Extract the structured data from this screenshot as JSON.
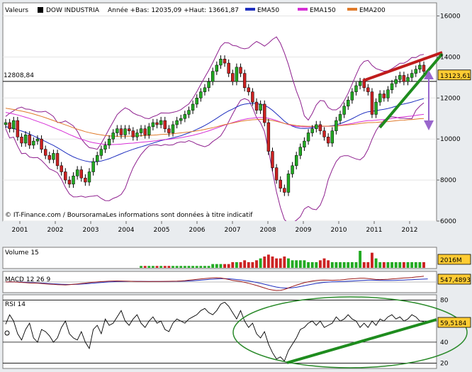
{
  "header": {
    "label_valeurs": "Valeurs",
    "symbol": "DOW INDUSTRIA",
    "range_text": "Année +Bas: 12035,09 +Haut: 13661,87",
    "legend": [
      {
        "name": "EMA50",
        "color": "#1f2fbf"
      },
      {
        "name": "EMA150",
        "color": "#d62fd6"
      },
      {
        "name": "EMA200",
        "color": "#e07a2a"
      }
    ]
  },
  "source_text": "© IT-Finance.com / BoursoramaLes informations sont données à titre indicatif",
  "chart_data": [
    {
      "type": "candlestick",
      "x_labels": [
        "2001",
        "2002",
        "2003",
        "2004",
        "2005",
        "2006",
        "2007",
        "2008",
        "2009",
        "2010",
        "2011",
        "2012"
      ],
      "ylim": [
        6000,
        16500
      ],
      "y_ticks": [
        "6000",
        "8000",
        "10000",
        "12000",
        "14000",
        "16000"
      ],
      "reference_line": {
        "value": 12808.84,
        "label": "12808,84"
      },
      "last_value": {
        "value": 13123.61,
        "label": "13123,61"
      },
      "close": [
        10800,
        10500,
        10900,
        10100,
        9800,
        10200,
        9700,
        9900,
        10000,
        9500,
        9200,
        9000,
        9300,
        8700,
        8400,
        8000,
        7800,
        8200,
        8500,
        8100,
        7900,
        8400,
        8900,
        9200,
        9500,
        9700,
        10000,
        10300,
        10500,
        10200,
        10500,
        10400,
        10100,
        10300,
        10500,
        10200,
        10600,
        10800,
        10700,
        10900,
        10500,
        10300,
        10700,
        10900,
        11000,
        11200,
        11400,
        11700,
        12000,
        12300,
        12500,
        12800,
        13300,
        13600,
        13900,
        13700,
        13200,
        12800,
        13500,
        13200,
        12500,
        12300,
        11800,
        11400,
        11700,
        10800,
        9400,
        8600,
        8000,
        7600,
        7400,
        8300,
        8700,
        9200,
        9600,
        9900,
        10300,
        10500,
        10700,
        10400,
        10100,
        9800,
        10400,
        10900,
        11200,
        11600,
        11900,
        12300,
        12600,
        12800,
        12500,
        12300,
        11200,
        11800,
        12200,
        12000,
        12400,
        12700,
        12900,
        13100,
        12800,
        13000,
        13200,
        13400,
        13600,
        13300
      ],
      "ema50": [
        10600,
        10560,
        10510,
        10450,
        10390,
        10320,
        10240,
        10150,
        10060,
        9970,
        9880,
        9780,
        9690,
        9580,
        9460,
        9340,
        9230,
        9130,
        9050,
        8980,
        8930,
        8890,
        8880,
        8900,
        8930,
        8980,
        9040,
        9120,
        9200,
        9280,
        9360,
        9430,
        9500,
        9560,
        9620,
        9680,
        9740,
        9800,
        9860,
        9920,
        9970,
        10010,
        10060,
        10110,
        10160,
        10230,
        10300,
        10380,
        10470,
        10560,
        10660,
        10770,
        10890,
        11010,
        11140,
        11260,
        11370,
        11460,
        11560,
        11650,
        11700,
        11730,
        11740,
        11720,
        11700,
        11640,
        11540,
        11400,
        11230,
        11050,
        10870,
        10730,
        10630,
        10560,
        10520,
        10510,
        10520,
        10550,
        10590,
        10620,
        10630,
        10630,
        10650,
        10690,
        10750,
        10820,
        10900,
        10990,
        11090,
        11190,
        11270,
        11330,
        11350,
        11380,
        11420,
        11450,
        11490,
        11540,
        11600,
        11660,
        11710,
        11750,
        11800,
        11860,
        11920,
        11970
      ],
      "ema150": [
        11300,
        11260,
        11220,
        11170,
        11120,
        11060,
        11000,
        10930,
        10860,
        10790,
        10720,
        10640,
        10560,
        10480,
        10400,
        10310,
        10220,
        10140,
        10060,
        9990,
        9930,
        9870,
        9820,
        9790,
        9760,
        9740,
        9730,
        9730,
        9740,
        9750,
        9770,
        9790,
        9800,
        9820,
        9840,
        9860,
        9880,
        9900,
        9920,
        9950,
        9970,
        9990,
        10010,
        10040,
        10070,
        10100,
        10140,
        10180,
        10230,
        10280,
        10340,
        10400,
        10470,
        10540,
        10610,
        10680,
        10740,
        10800,
        10860,
        10920,
        10960,
        11000,
        11020,
        11040,
        11050,
        11040,
        11010,
        10960,
        10900,
        10830,
        10760,
        10700,
        10660,
        10620,
        10600,
        10590,
        10590,
        10600,
        10610,
        10620,
        10620,
        10620,
        10630,
        10650,
        10670,
        10700,
        10730,
        10760,
        10800,
        10840,
        10870,
        10900,
        10900,
        10920,
        10940,
        10950,
        10970,
        11000,
        11030,
        11060,
        11080,
        11100,
        11120,
        11150,
        11180,
        11200
      ],
      "ema200": [
        11500,
        11470,
        11440,
        11400,
        11360,
        11320,
        11270,
        11220,
        11160,
        11100,
        11040,
        10970,
        10900,
        10830,
        10760,
        10690,
        10620,
        10550,
        10480,
        10420,
        10360,
        10310,
        10270,
        10230,
        10200,
        10170,
        10150,
        10140,
        10130,
        10130,
        10130,
        10140,
        10140,
        10150,
        10160,
        10170,
        10180,
        10190,
        10200,
        10220,
        10230,
        10240,
        10260,
        10280,
        10300,
        10320,
        10340,
        10370,
        10400,
        10430,
        10470,
        10510,
        10550,
        10600,
        10650,
        10700,
        10740,
        10780,
        10820,
        10860,
        10890,
        10920,
        10940,
        10950,
        10960,
        10950,
        10930,
        10900,
        10860,
        10810,
        10760,
        10720,
        10690,
        10660,
        10640,
        10630,
        10620,
        10620,
        10620,
        10630,
        10630,
        10630,
        10630,
        10640,
        10650,
        10670,
        10690,
        10710,
        10730,
        10760,
        10780,
        10800,
        10800,
        10810,
        10830,
        10840,
        10850,
        10870,
        10890,
        10910,
        10920,
        10940,
        10950,
        10970,
        10990,
        11000
      ]
    },
    {
      "type": "bar",
      "title": "Volume 15",
      "last_value": {
        "label": "2016M"
      },
      "values": [
        0,
        0,
        0,
        0,
        0,
        0,
        0,
        0,
        0,
        0,
        0,
        0,
        0,
        0,
        0,
        0,
        0,
        0,
        0,
        0,
        0,
        0,
        0,
        0,
        0,
        0,
        0,
        0,
        0,
        0,
        0,
        0,
        0,
        0,
        1,
        1,
        1,
        1,
        1,
        1,
        1,
        1,
        1,
        1,
        1,
        1,
        1,
        1,
        1,
        1,
        1,
        1,
        2,
        2,
        2,
        2,
        2,
        3,
        3,
        3,
        4,
        3,
        3,
        4,
        5,
        6,
        7,
        6,
        5,
        5,
        6,
        5,
        4,
        4,
        4,
        4,
        3,
        3,
        3,
        4,
        5,
        4,
        3,
        3,
        3,
        3,
        3,
        3,
        3,
        9,
        3,
        3,
        8,
        5,
        3,
        3,
        3,
        3,
        3,
        3,
        3,
        3,
        3,
        3,
        3,
        3
      ]
    },
    {
      "type": "line",
      "title": "MACD 12 26 9",
      "last_value": {
        "label": "547,4893"
      },
      "ylim": [
        -1000,
        1000
      ],
      "macd": [
        0,
        20,
        10,
        -20,
        -40,
        -60,
        -90,
        -100,
        -110,
        -140,
        -170,
        -200,
        -220,
        -250,
        -260,
        -270,
        -250,
        -220,
        -180,
        -140,
        -100,
        -60,
        -20,
        10,
        40,
        60,
        80,
        90,
        100,
        90,
        80,
        70,
        60,
        55,
        50,
        45,
        40,
        45,
        50,
        55,
        60,
        65,
        70,
        80,
        100,
        130,
        170,
        210,
        250,
        290,
        330,
        360,
        390,
        400,
        380,
        320,
        240,
        150,
        100,
        50,
        -30,
        -120,
        -220,
        -330,
        -440,
        -560,
        -680,
        -750,
        -800,
        -780,
        -700,
        -560,
        -420,
        -290,
        -170,
        -60,
        20,
        90,
        140,
        170,
        180,
        170,
        160,
        170,
        190,
        230,
        270,
        300,
        330,
        360,
        360,
        330,
        280,
        240,
        230,
        240,
        260,
        290,
        320,
        350,
        380,
        400,
        430,
        470,
        500,
        547
      ],
      "signal": [
        0,
        10,
        10,
        0,
        -15,
        -30,
        -50,
        -65,
        -80,
        -100,
        -125,
        -150,
        -170,
        -195,
        -215,
        -230,
        -235,
        -230,
        -215,
        -195,
        -170,
        -140,
        -105,
        -75,
        -45,
        -20,
        5,
        25,
        45,
        55,
        62,
        65,
        64,
        62,
        59,
        56,
        52,
        50,
        50,
        51,
        53,
        56,
        59,
        64,
        72,
        84,
        101,
        123,
        148,
        176,
        207,
        238,
        268,
        295,
        312,
        314,
        299,
        270,
        236,
        198,
        152,
        97,
        33,
        -40,
        -120,
        -208,
        -302,
        -392,
        -473,
        -535,
        -568,
        -567,
        -538,
        -490,
        -426,
        -353,
        -276,
        -201,
        -134,
        -79,
        -36,
        -6,
        13,
        27,
        40,
        56,
        75,
        95,
        117,
        139,
        159,
        172,
        173,
        166,
        157,
        150,
        149,
        153,
        161,
        173,
        188,
        205,
        222,
        239,
        257,
        276,
        296
      ]
    },
    {
      "type": "line",
      "title": "RSI 14",
      "last_value": {
        "label": "59,5184"
      },
      "ylim": [
        15,
        85
      ],
      "y_ticks": [
        "20",
        "40",
        "60",
        "80"
      ],
      "values": [
        57,
        66,
        60,
        48,
        42,
        52,
        58,
        44,
        40,
        52,
        50,
        46,
        40,
        44,
        54,
        60,
        48,
        44,
        42,
        50,
        40,
        34,
        52,
        56,
        48,
        62,
        56,
        58,
        64,
        70,
        60,
        56,
        62,
        66,
        58,
        54,
        60,
        64,
        58,
        60,
        52,
        50,
        58,
        62,
        60,
        58,
        62,
        64,
        66,
        70,
        72,
        68,
        66,
        70,
        76,
        78,
        74,
        68,
        62,
        70,
        60,
        54,
        58,
        48,
        44,
        50,
        38,
        30,
        24,
        26,
        22,
        32,
        38,
        44,
        52,
        54,
        58,
        60,
        56,
        60,
        54,
        56,
        58,
        64,
        60,
        62,
        66,
        62,
        60,
        54,
        58,
        54,
        60,
        56,
        62,
        60,
        64,
        66,
        62,
        64,
        60,
        62,
        66,
        64,
        60,
        59.5
      ]
    }
  ],
  "colors": {
    "up": "#22aa22",
    "down": "#cc2222",
    "bollinger": "#8e1f8e",
    "macd": "#9b1b1b",
    "signal": "#1f2fbf",
    "rsi": "#000000",
    "value_tag": "#ffcc33",
    "ellipse": "#2a8a2a",
    "trend_green": "#1e8c1e",
    "trend_red": "#c01c1c",
    "arrow": "#9966cc"
  }
}
